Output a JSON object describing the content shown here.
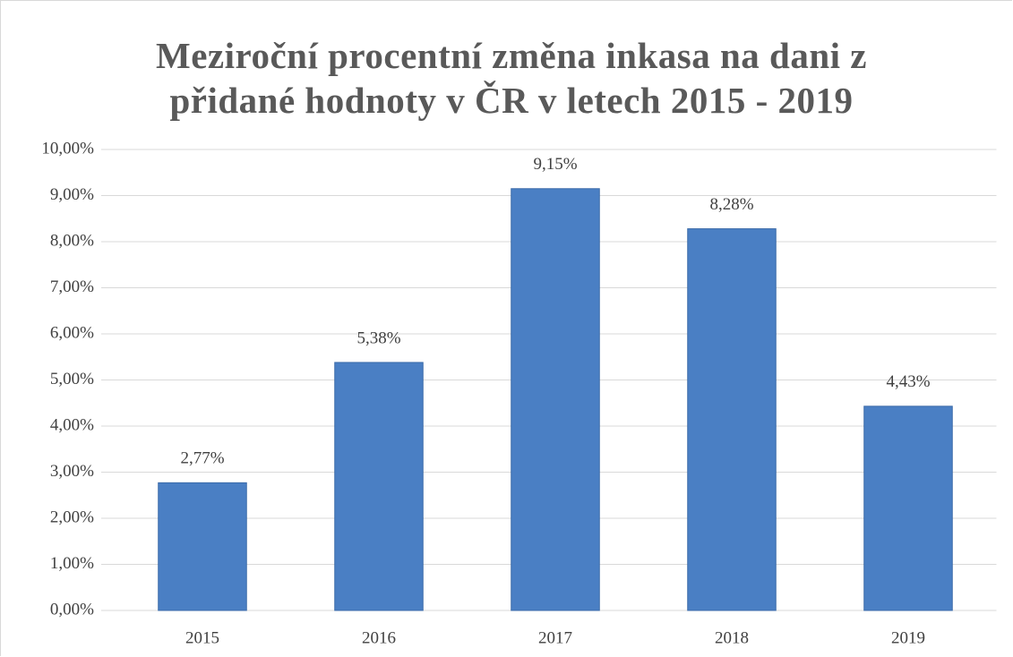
{
  "chart_data": {
    "type": "bar",
    "title": "Meziroční procentní změna inkasa na dani z přidané hodnoty v ČR v letech 2015 - 2019",
    "categories": [
      "2015",
      "2016",
      "2017",
      "2018",
      "2019"
    ],
    "values": [
      2.77,
      5.38,
      9.15,
      8.28,
      4.43
    ],
    "value_labels": [
      "2,77%",
      "5,38%",
      "9,15%",
      "8,28%",
      "4,43%"
    ],
    "color": "#4a7fc4",
    "ylim": [
      0,
      10
    ],
    "yticks": [
      {
        "value": 0,
        "label": "0,00%"
      },
      {
        "value": 1,
        "label": "1,00%"
      },
      {
        "value": 2,
        "label": "2,00%"
      },
      {
        "value": 3,
        "label": "3,00%"
      },
      {
        "value": 4,
        "label": "4,00%"
      },
      {
        "value": 5,
        "label": "5,00%"
      },
      {
        "value": 6,
        "label": "6,00%"
      },
      {
        "value": 7,
        "label": "7,00%"
      },
      {
        "value": 8,
        "label": "8,00%"
      },
      {
        "value": 9,
        "label": "9,00%"
      },
      {
        "value": 10,
        "label": "10,00%"
      }
    ],
    "grid": true
  }
}
